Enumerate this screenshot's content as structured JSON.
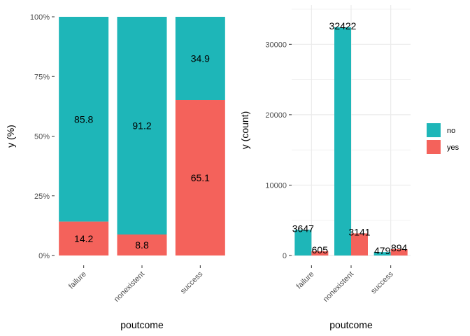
{
  "colors": {
    "no": "#1eb6b8",
    "yes": "#f4625b",
    "grid": "#ebebeb",
    "tick": "#4d4d4d"
  },
  "legend": {
    "items": [
      {
        "key": "no",
        "label": "no"
      },
      {
        "key": "yes",
        "label": "yes"
      }
    ]
  },
  "chart_data": [
    {
      "type": "bar",
      "stacked": true,
      "percent": true,
      "categories": [
        "failure",
        "nonexistent",
        "success"
      ],
      "series": [
        {
          "name": "no",
          "values": [
            85.8,
            91.2,
            34.9
          ]
        },
        {
          "name": "yes",
          "values": [
            14.2,
            8.8,
            65.1
          ]
        }
      ],
      "data_labels": {
        "no": [
          "85.8",
          "91.2",
          "34.9"
        ],
        "yes": [
          "14.2",
          "8.8",
          "65.1"
        ]
      },
      "xlabel": "poutcome",
      "ylabel": "y  (%)",
      "ylim": [
        0,
        100
      ],
      "yticks": [
        0,
        25,
        50,
        75,
        100
      ],
      "ytick_labels": [
        "0%",
        "25%",
        "50%",
        "75%",
        "100%"
      ],
      "grid": false
    },
    {
      "type": "bar",
      "stacked": false,
      "categories": [
        "failure",
        "nonexistent",
        "success"
      ],
      "series": [
        {
          "name": "no",
          "values": [
            3647,
            32422,
            479
          ]
        },
        {
          "name": "yes",
          "values": [
            605,
            3141,
            894
          ]
        }
      ],
      "data_labels": {
        "no": [
          "3647",
          "32422",
          "479"
        ],
        "yes": [
          "605",
          "3141",
          "894"
        ]
      },
      "xlabel": "poutcome",
      "ylabel": "y  (count)",
      "ylim": [
        0,
        35600
      ],
      "yticks": [
        0,
        10000,
        20000,
        30000
      ],
      "ytick_labels": [
        "0",
        "10000",
        "20000",
        "30000"
      ],
      "grid": true,
      "legend_position": "right"
    }
  ]
}
